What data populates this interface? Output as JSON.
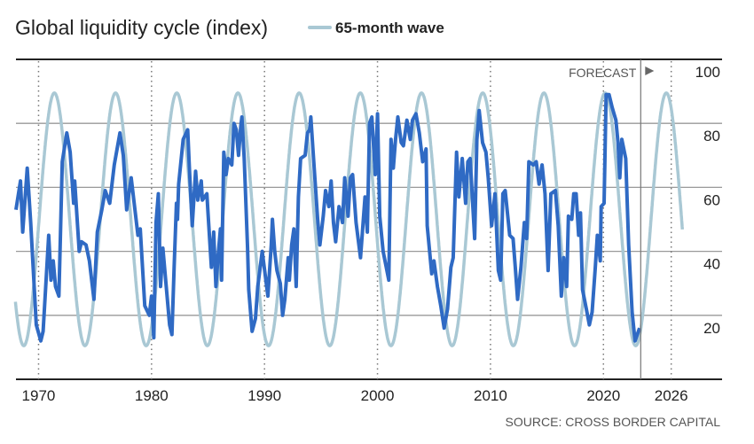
{
  "chart_data": {
    "type": "line",
    "title": "Global liquidity cycle (index)",
    "source": "SOURCE: CROSS BORDER CAPITAL",
    "forecast_label": "FORECAST",
    "forecast_start": 2023.3,
    "xlim": [
      1968,
      2030.5
    ],
    "ylim": [
      0,
      100
    ],
    "x_ticks": [
      1970,
      1980,
      1990,
      2000,
      2010,
      2020,
      2026
    ],
    "x_tick_labels": [
      "1970",
      "1980",
      "1990",
      "2000",
      "2010",
      "2020",
      "2026"
    ],
    "y_ticks": [
      20,
      40,
      60,
      80,
      100
    ],
    "y_tick_labels": [
      "20",
      "40",
      "60",
      "80",
      "100"
    ],
    "y_axis_side": "right",
    "grid": "horizontal",
    "legend_position": "top",
    "series": [
      {
        "key": "liquidity",
        "color": "#2f6ac4",
        "points": [
          [
            1968.0,
            53
          ],
          [
            1968.4,
            62
          ],
          [
            1968.6,
            46
          ],
          [
            1969.0,
            66
          ],
          [
            1969.3,
            49
          ],
          [
            1969.8,
            17
          ],
          [
            1970.2,
            12
          ],
          [
            1970.4,
            15
          ],
          [
            1970.9,
            45
          ],
          [
            1971.1,
            31
          ],
          [
            1971.3,
            37
          ],
          [
            1971.5,
            29
          ],
          [
            1971.8,
            26
          ],
          [
            1972.1,
            68
          ],
          [
            1972.5,
            77
          ],
          [
            1972.8,
            71
          ],
          [
            1973.1,
            55
          ],
          [
            1973.2,
            62
          ],
          [
            1973.6,
            40
          ],
          [
            1973.8,
            43
          ],
          [
            1974.2,
            42
          ],
          [
            1974.5,
            37
          ],
          [
            1974.9,
            25
          ],
          [
            1975.2,
            46
          ],
          [
            1975.6,
            53
          ],
          [
            1975.9,
            59
          ],
          [
            1976.3,
            55
          ],
          [
            1976.7,
            67
          ],
          [
            1977.2,
            77
          ],
          [
            1977.5,
            70
          ],
          [
            1977.8,
            53
          ],
          [
            1978.2,
            63
          ],
          [
            1978.8,
            45
          ],
          [
            1979.0,
            47
          ],
          [
            1979.4,
            23
          ],
          [
            1979.8,
            20
          ],
          [
            1980.0,
            26
          ],
          [
            1980.2,
            13
          ],
          [
            1980.4,
            49
          ],
          [
            1980.6,
            58
          ],
          [
            1980.8,
            29
          ],
          [
            1981.0,
            41
          ],
          [
            1981.3,
            29
          ],
          [
            1981.6,
            17
          ],
          [
            1981.8,
            14
          ],
          [
            1982.0,
            35
          ],
          [
            1982.2,
            55
          ],
          [
            1982.3,
            50
          ],
          [
            1982.4,
            61
          ],
          [
            1982.8,
            75
          ],
          [
            1983.2,
            78
          ],
          [
            1983.35,
            66
          ],
          [
            1983.6,
            48
          ],
          [
            1983.9,
            65
          ],
          [
            1984.1,
            56
          ],
          [
            1984.4,
            62
          ],
          [
            1984.5,
            56
          ],
          [
            1984.9,
            58
          ],
          [
            1985.0,
            52
          ],
          [
            1985.3,
            35
          ],
          [
            1985.5,
            46
          ],
          [
            1985.7,
            29
          ],
          [
            1985.9,
            39
          ],
          [
            1986.1,
            47
          ],
          [
            1986.2,
            31
          ],
          [
            1986.4,
            71
          ],
          [
            1986.6,
            64
          ],
          [
            1986.8,
            69
          ],
          [
            1987.1,
            67
          ],
          [
            1987.3,
            80
          ],
          [
            1987.5,
            78
          ],
          [
            1987.7,
            70
          ],
          [
            1987.9,
            79
          ],
          [
            1988.0,
            82
          ],
          [
            1988.2,
            69
          ],
          [
            1988.5,
            41
          ],
          [
            1988.6,
            28
          ],
          [
            1988.9,
            15
          ],
          [
            1989.2,
            19
          ],
          [
            1989.4,
            29
          ],
          [
            1989.8,
            40
          ],
          [
            1990.3,
            26
          ],
          [
            1990.6,
            42
          ],
          [
            1990.7,
            50
          ],
          [
            1990.9,
            40
          ],
          [
            1991.1,
            34
          ],
          [
            1991.4,
            30
          ],
          [
            1991.6,
            20
          ],
          [
            1991.8,
            25
          ],
          [
            1992.1,
            38
          ],
          [
            1992.2,
            31
          ],
          [
            1992.4,
            42
          ],
          [
            1992.6,
            47
          ],
          [
            1992.8,
            29
          ],
          [
            1993.0,
            57
          ],
          [
            1993.2,
            69
          ],
          [
            1993.6,
            70
          ],
          [
            1993.8,
            77
          ],
          [
            1994.0,
            78
          ],
          [
            1994.1,
            82
          ],
          [
            1994.3,
            71
          ],
          [
            1994.7,
            50
          ],
          [
            1994.9,
            42
          ],
          [
            1995.2,
            51
          ],
          [
            1995.4,
            59
          ],
          [
            1995.7,
            54
          ],
          [
            1995.9,
            62
          ],
          [
            1996.1,
            49
          ],
          [
            1996.3,
            43
          ],
          [
            1996.6,
            54
          ],
          [
            1996.9,
            49
          ],
          [
            1997.1,
            63
          ],
          [
            1997.4,
            51
          ],
          [
            1997.6,
            63
          ],
          [
            1997.8,
            64
          ],
          [
            1998.1,
            49
          ],
          [
            1998.5,
            38
          ],
          [
            1998.9,
            57
          ],
          [
            1999.1,
            46
          ],
          [
            1999.3,
            80
          ],
          [
            1999.5,
            82
          ],
          [
            1999.8,
            64
          ],
          [
            2000.0,
            83
          ],
          [
            2000.2,
            51
          ],
          [
            2000.5,
            40
          ],
          [
            2001.0,
            31
          ],
          [
            2001.2,
            75
          ],
          [
            2001.4,
            66
          ],
          [
            2001.6,
            75
          ],
          [
            2001.8,
            82
          ],
          [
            2002.1,
            74
          ],
          [
            2002.3,
            73
          ],
          [
            2002.6,
            81
          ],
          [
            2002.9,
            75
          ],
          [
            2003.1,
            81
          ],
          [
            2003.4,
            83
          ],
          [
            2003.7,
            77
          ],
          [
            2004.0,
            68
          ],
          [
            2004.3,
            72
          ],
          [
            2004.4,
            48
          ],
          [
            2004.8,
            33
          ],
          [
            2005.0,
            37
          ],
          [
            2005.3,
            29
          ],
          [
            2005.6,
            23
          ],
          [
            2005.9,
            16
          ],
          [
            2006.2,
            22
          ],
          [
            2006.5,
            35
          ],
          [
            2006.7,
            38
          ],
          [
            2007.0,
            71
          ],
          [
            2007.2,
            57
          ],
          [
            2007.5,
            69
          ],
          [
            2007.8,
            55
          ],
          [
            2008.0,
            68
          ],
          [
            2008.2,
            69
          ],
          [
            2008.6,
            44
          ],
          [
            2008.8,
            75
          ],
          [
            2009.0,
            84
          ],
          [
            2009.3,
            74
          ],
          [
            2009.6,
            71
          ],
          [
            2009.8,
            63
          ],
          [
            2010.1,
            48
          ],
          [
            2010.4,
            58
          ],
          [
            2010.7,
            34
          ],
          [
            2010.9,
            31
          ],
          [
            2011.1,
            58
          ],
          [
            2011.3,
            59
          ],
          [
            2011.7,
            45
          ],
          [
            2012.0,
            44
          ],
          [
            2012.2,
            35
          ],
          [
            2012.4,
            25
          ],
          [
            2012.7,
            35
          ],
          [
            2013.0,
            49
          ],
          [
            2013.2,
            44
          ],
          [
            2013.4,
            68
          ],
          [
            2013.8,
            67
          ],
          [
            2014.05,
            68
          ],
          [
            2014.3,
            61
          ],
          [
            2014.57,
            67
          ],
          [
            2014.83,
            58
          ],
          [
            2015.1,
            34
          ],
          [
            2015.35,
            58
          ],
          [
            2015.75,
            59
          ],
          [
            2016.0,
            48
          ],
          [
            2016.27,
            26
          ],
          [
            2016.48,
            38
          ],
          [
            2016.74,
            29
          ],
          [
            2016.9,
            51
          ],
          [
            2017.2,
            50
          ],
          [
            2017.37,
            58
          ],
          [
            2017.58,
            58
          ],
          [
            2017.8,
            45
          ],
          [
            2017.97,
            52
          ],
          [
            2018.15,
            28
          ],
          [
            2018.49,
            22
          ],
          [
            2018.75,
            17
          ],
          [
            2019.0,
            21
          ],
          [
            2019.28,
            35
          ],
          [
            2019.46,
            45
          ],
          [
            2019.72,
            37
          ],
          [
            2019.8,
            54
          ],
          [
            2020.06,
            55
          ],
          [
            2020.24,
            89
          ],
          [
            2020.5,
            89
          ],
          [
            2020.77,
            85
          ],
          [
            2021.1,
            81
          ],
          [
            2021.29,
            74
          ],
          [
            2021.45,
            63
          ],
          [
            2021.63,
            75
          ],
          [
            2021.97,
            69
          ],
          [
            2022.23,
            42
          ],
          [
            2022.54,
            21
          ],
          [
            2022.8,
            12
          ],
          [
            2023.2,
            16
          ]
        ]
      },
      {
        "key": "wave",
        "name": "65-month wave",
        "color": "#a9c8d4",
        "period_months": 65,
        "peak_year": 2020.15,
        "center": 50,
        "amplitude": 39.5,
        "start": 1967.95,
        "end": 2027.0
      }
    ]
  }
}
